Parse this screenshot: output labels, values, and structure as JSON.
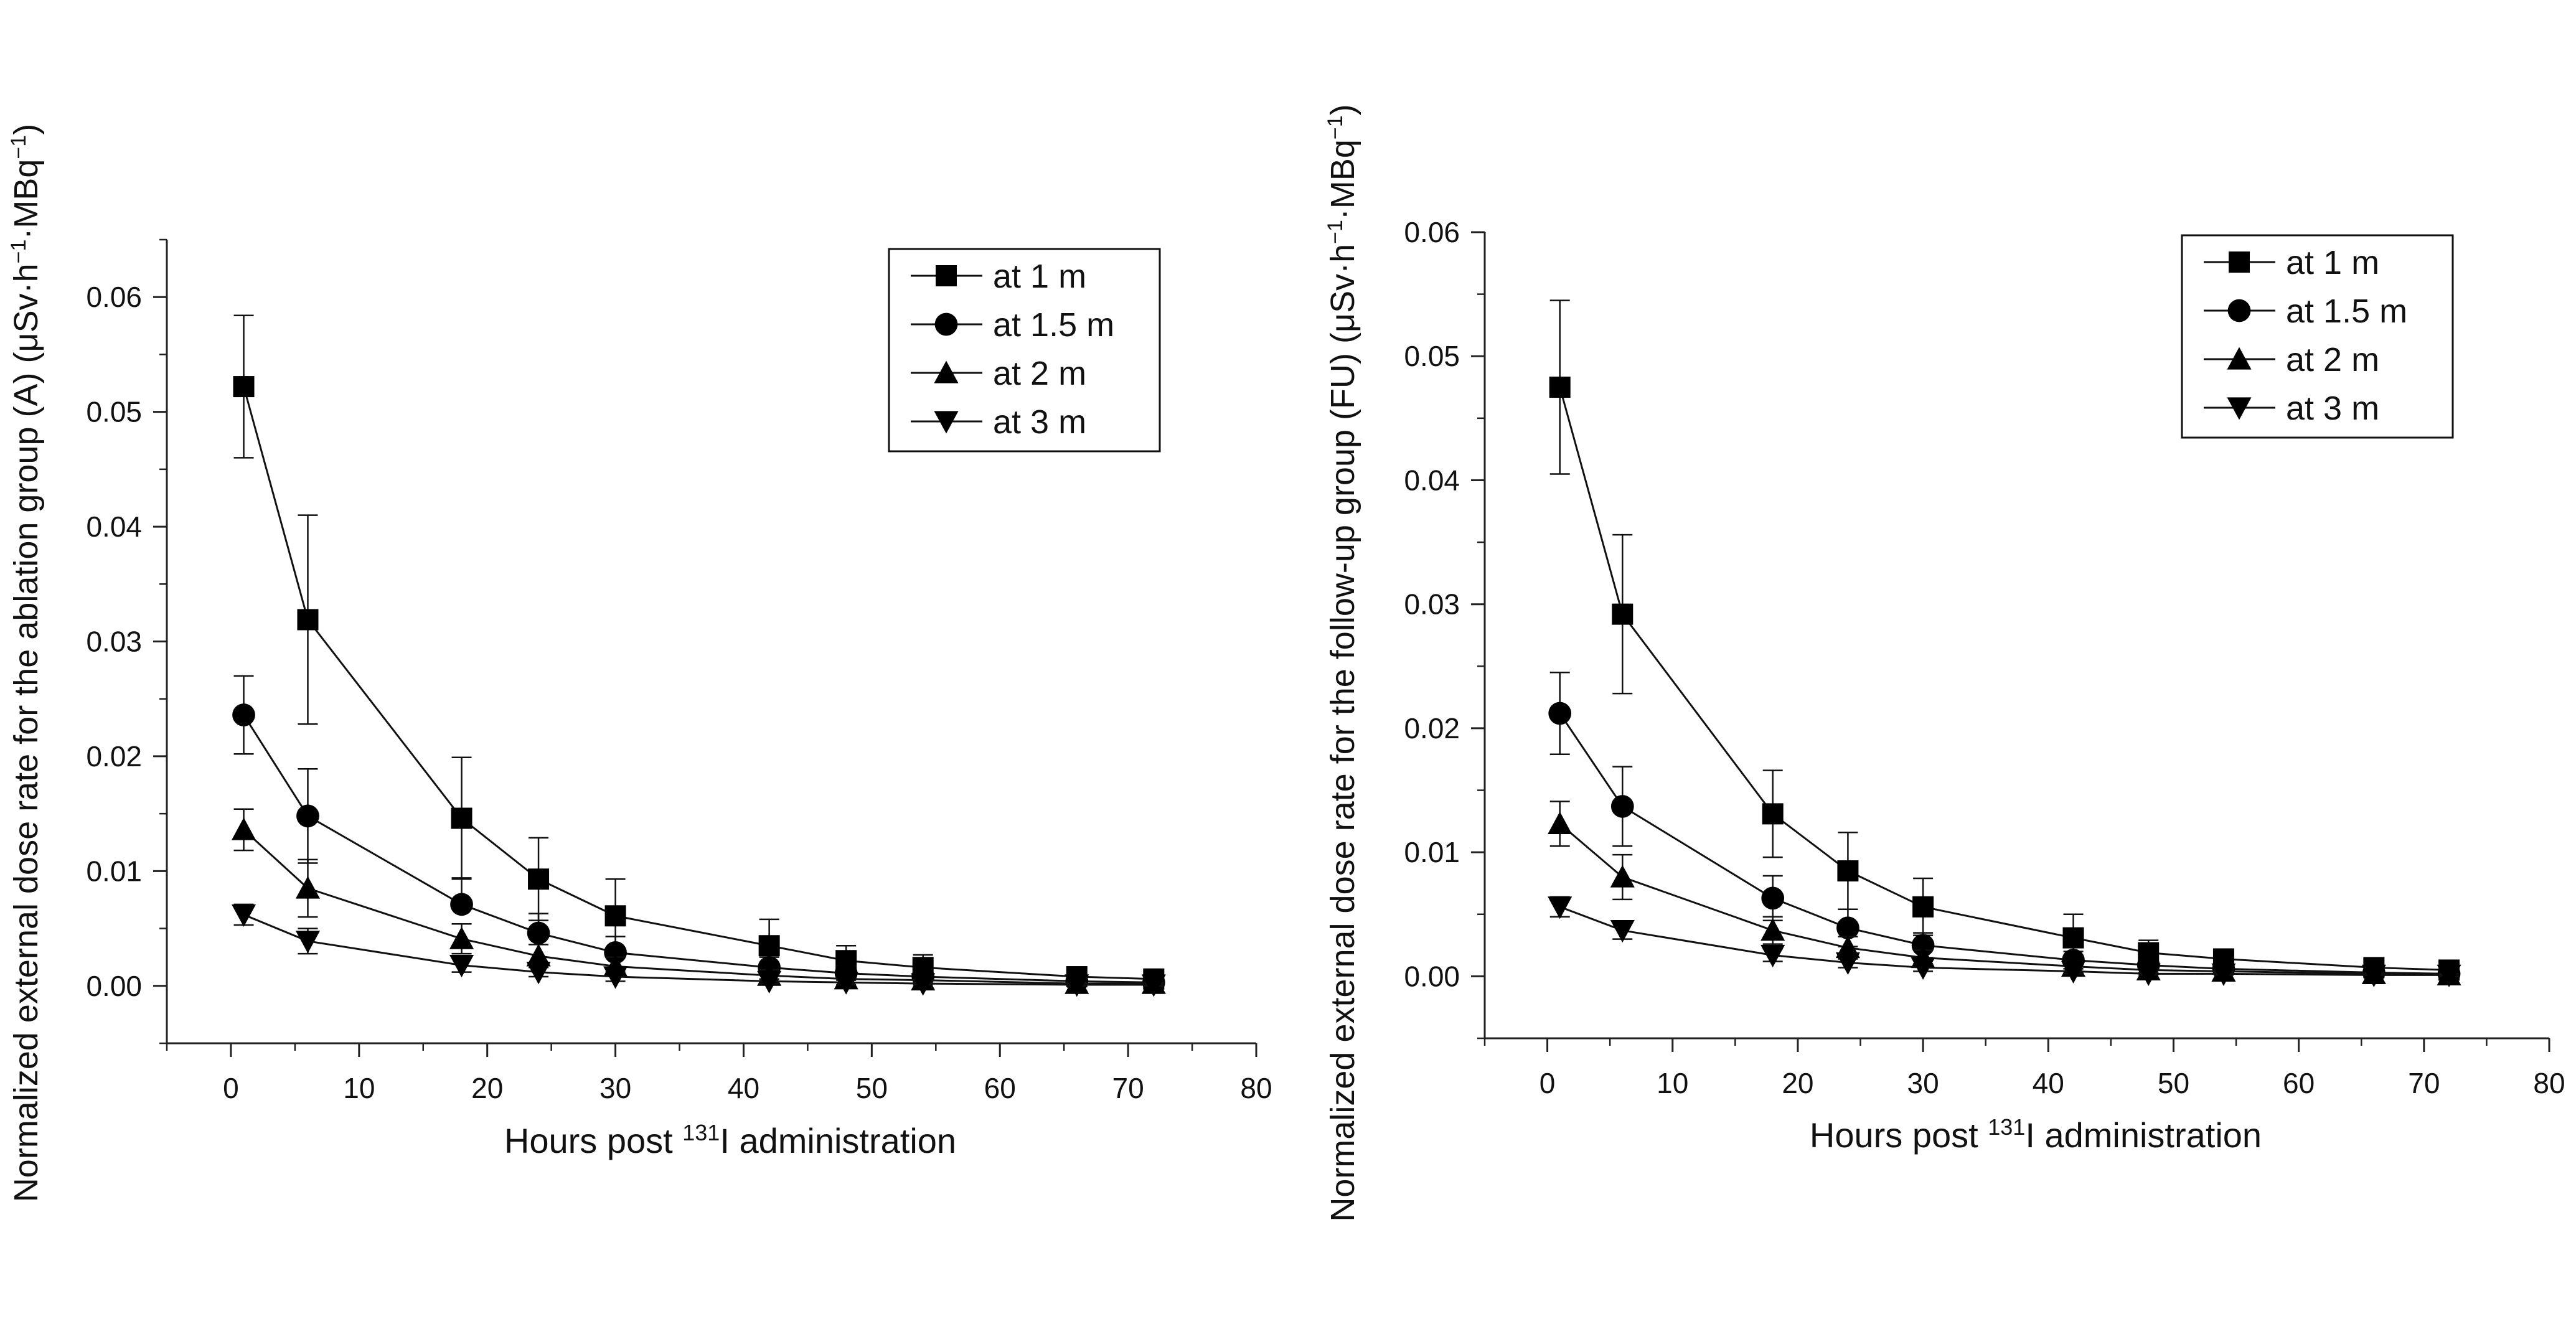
{
  "chart_data": [
    {
      "id": "A",
      "type": "line",
      "xlabel": "Hours post ",
      "xlabel_sup": "131",
      "xlabel_tail": "I administration",
      "ylabel": "Normalized external dose rate for the ablation group (A)  (μSv·h",
      "ylabel_sup1": "−1",
      "ylabel_mid": "·MBq",
      "ylabel_sup2": "−1",
      "ylabel_tail": ")",
      "xlim": [
        -5,
        80
      ],
      "ylim": [
        -0.005,
        0.065
      ],
      "xticks": [
        0,
        10,
        20,
        30,
        40,
        50,
        60,
        70,
        80
      ],
      "xtick_labels": [
        "0",
        "10",
        "20",
        "30",
        "40",
        "50",
        "60",
        "70",
        "80"
      ],
      "yticks": [
        0,
        0.01,
        0.02,
        0.03,
        0.04,
        0.05,
        0.06
      ],
      "ytick_labels": [
        "0.00",
        "0.01",
        "0.02",
        "0.03",
        "0.04",
        "0.05",
        "0.06"
      ],
      "legend_position": "top-right",
      "x": [
        1,
        6,
        18,
        24,
        30,
        42,
        48,
        54,
        66,
        72
      ],
      "series": [
        {
          "name": "at 1 m",
          "marker": "square",
          "values": [
            0.0522,
            0.0319,
            0.0146,
            0.0093,
            0.0061,
            0.0035,
            0.0022,
            0.0016,
            0.0008,
            0.0006
          ],
          "errors": [
            0.0062,
            0.0091,
            0.0053,
            0.0036,
            0.0032,
            0.0023,
            0.0013,
            0.0011,
            0.0004,
            0.0003
          ]
        },
        {
          "name": "at 1.5 m",
          "marker": "circle",
          "values": [
            0.0236,
            0.0148,
            0.0071,
            0.0046,
            0.0029,
            0.0016,
            0.0011,
            0.0008,
            0.0004,
            0.0003
          ],
          "errors": [
            0.0034,
            0.0041,
            0.0023,
            0.0017,
            0.0014,
            0.0009,
            0.0006,
            0.0005,
            0.0002,
            0.0002
          ],
          "lower_errors": [
            0.0034,
            0.0041,
            0,
            0,
            0,
            0,
            0,
            0,
            0,
            0
          ]
        },
        {
          "name": "at 2 m",
          "marker": "triangle-up",
          "values": [
            0.0136,
            0.0085,
            0.0041,
            0.0026,
            0.0017,
            0.0009,
            0.0006,
            0.0005,
            0.0002,
            0.0002
          ],
          "errors": [
            0.0018,
            0.0025,
            0.0013,
            0.001,
            0.0008,
            0.0005,
            0.0003,
            0.0003,
            0.0001,
            0.0001
          ]
        },
        {
          "name": "at 3 m",
          "marker": "triangle-down",
          "values": [
            0.0062,
            0.0039,
            0.0018,
            0.0012,
            0.0008,
            0.0004,
            0.0003,
            0.0002,
            0.0001,
            0.0001
          ],
          "errors": [
            0.0009,
            0.0011,
            0.0006,
            0.0004,
            0.0004,
            0.0002,
            0.0002,
            0.0001,
            0.0001,
            0.0001
          ]
        }
      ]
    },
    {
      "id": "FU",
      "type": "line",
      "xlabel": "Hours post ",
      "xlabel_sup": "131",
      "xlabel_tail": "I administration",
      "ylabel": "Normalized external dose rate for the follow-up group (FU) (μSv·h",
      "ylabel_sup1": "−1",
      "ylabel_mid": "·MBq",
      "ylabel_sup2": "−1",
      "ylabel_tail": ")",
      "xlim": [
        -5,
        80
      ],
      "ylim": [
        -0.005,
        0.06
      ],
      "xticks": [
        0,
        10,
        20,
        30,
        40,
        50,
        60,
        70,
        80
      ],
      "xtick_labels": [
        "0",
        "10",
        "20",
        "30",
        "40",
        "50",
        "60",
        "70",
        "80"
      ],
      "yticks": [
        0,
        0.01,
        0.02,
        0.03,
        0.04,
        0.05,
        0.06
      ],
      "ytick_labels": [
        "0.00",
        "0.01",
        "0.02",
        "0.03",
        "0.04",
        "0.05",
        "0.06"
      ],
      "legend_position": "top-right",
      "x": [
        1,
        6,
        18,
        24,
        30,
        42,
        48,
        54,
        66,
        72
      ],
      "series": [
        {
          "name": "at 1 m",
          "marker": "square",
          "values": [
            0.0475,
            0.0292,
            0.0131,
            0.0085,
            0.0056,
            0.0031,
            0.0019,
            0.0014,
            0.0007,
            0.0005
          ],
          "errors": [
            0.007,
            0.0064,
            0.0035,
            0.0031,
            0.0023,
            0.0019,
            0.001,
            0.0007,
            0.0003,
            0.0002
          ]
        },
        {
          "name": "at 1.5 m",
          "marker": "circle",
          "values": [
            0.0212,
            0.0137,
            0.0063,
            0.0039,
            0.0025,
            0.0013,
            0.0009,
            0.0006,
            0.0003,
            0.0002
          ],
          "errors": [
            0.0033,
            0.0032,
            0.0018,
            0.0015,
            0.001,
            0.0007,
            0.0004,
            0.0003,
            0.0002,
            0.0001
          ]
        },
        {
          "name": "at 2 m",
          "marker": "triangle-up",
          "values": [
            0.0123,
            0.008,
            0.0037,
            0.0023,
            0.0015,
            0.0008,
            0.0005,
            0.0004,
            0.0002,
            0.0001
          ],
          "errors": [
            0.0018,
            0.0018,
            0.0011,
            0.0009,
            0.0006,
            0.0004,
            0.0002,
            0.0002,
            0.0001,
            0.0001
          ]
        },
        {
          "name": "at 3 m",
          "marker": "triangle-down",
          "values": [
            0.0056,
            0.0037,
            0.0017,
            0.0011,
            0.0007,
            0.0004,
            0.0002,
            0.0002,
            0.0001,
            0.0001
          ],
          "errors": [
            0.0008,
            0.0007,
            0.0005,
            0.0004,
            0.0003,
            0.0002,
            0.0001,
            0.0001,
            0,
            0
          ]
        }
      ]
    }
  ]
}
